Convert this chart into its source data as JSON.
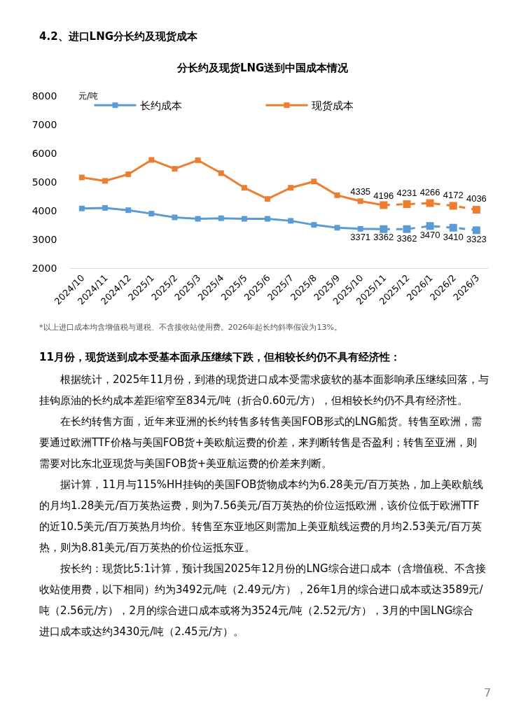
{
  "chart_data": {
    "type": "line",
    "title": "分长约及现货LNG送到中国成本情况",
    "ylabel": "元/吨",
    "categories": [
      "2024/10",
      "2024/11",
      "2024/12",
      "2025/1",
      "2025/2",
      "2025/3",
      "2025/4",
      "2025/5",
      "2025/6",
      "2025/7",
      "2025/8",
      "2025/9",
      "2025/10",
      "2025/11",
      "2025/12",
      "2026/1",
      "2026/2",
      "2026/3"
    ],
    "series": [
      {
        "name": "长约成本",
        "color": "#5b9bd5",
        "line_style": "solid",
        "marker": "square",
        "values": [
          4080,
          4100,
          4020,
          3900,
          3770,
          3720,
          3740,
          3720,
          3720,
          3650,
          3510,
          3410,
          3371,
          3362,
          null,
          null,
          null,
          null
        ],
        "value_labels": [
          null,
          null,
          null,
          null,
          null,
          null,
          null,
          null,
          null,
          null,
          null,
          null,
          "3371",
          "3362",
          null,
          null,
          null,
          null
        ]
      },
      {
        "name": "现货成本",
        "color": "#ed7d31",
        "line_style": "solid",
        "marker": "square",
        "values": [
          5160,
          5040,
          5270,
          5770,
          5460,
          5760,
          5310,
          4800,
          4410,
          4800,
          5020,
          4540,
          4335,
          4196,
          null,
          null,
          null,
          null
        ],
        "value_labels": [
          null,
          null,
          null,
          null,
          null,
          null,
          null,
          null,
          null,
          null,
          null,
          null,
          "4335",
          "4196",
          null,
          null,
          null,
          null
        ]
      },
      {
        "color": "#5b9bd5",
        "line_style": "dashed",
        "marker": "square",
        "values": [
          null,
          null,
          null,
          null,
          null,
          null,
          null,
          null,
          null,
          null,
          null,
          null,
          null,
          3362,
          3362,
          3470,
          3410,
          3323
        ],
        "value_labels": [
          null,
          null,
          null,
          null,
          null,
          null,
          null,
          null,
          null,
          null,
          null,
          null,
          null,
          null,
          "3362",
          "3470",
          "3410",
          "3323"
        ]
      },
      {
        "color": "#ed7d31",
        "line_style": "dashed",
        "marker": "square",
        "values": [
          null,
          null,
          null,
          null,
          null,
          null,
          null,
          null,
          null,
          null,
          null,
          null,
          null,
          4196,
          4231,
          4266,
          4172,
          4036
        ],
        "value_labels": [
          null,
          null,
          null,
          null,
          null,
          null,
          null,
          null,
          null,
          null,
          null,
          null,
          null,
          null,
          "4231",
          "4266",
          "4172",
          "4036"
        ]
      }
    ],
    "ylim": [
      2000,
      8000
    ],
    "yticks": [
      2000,
      3000,
      4000,
      5000,
      6000,
      7000,
      8000
    ],
    "grid": false,
    "legend": "top",
    "annotations": [
      "4.2、进口LNG分长约及现货成本",
      "*以上进口成本均含增值税与退税、不含接收站使用费。2026年起长约斜率假设为13%。",
      "11月份，现货送到成本受基本面承压继续下跌，但相较长约仍不具有经济性：",
      "根据统计，2025年11月份，到港的现货进口成本受需求疲软的基本面影响承压继续回落，与挂钩原油的长约成本差距缩窄至834元/吨（折合0.60元/方），但相较长约仍不具有经济性。",
      "在长约转售方面，近年来亚洲的长约转售多转售美国FOB形式的LNG船货。转售至欧洲，需要通过欧洲TTF价格与美国FOB货+美欧航运费的价差，来判断转售是否盈利；转售至亚洲，则需要对比东北亚现货与美国FOB货+美亚航运费的价差来判断。",
      "据计算，11月与115%HH挂钩的美国FOB货物成本约为6.28美元/百万英热，加上美欧航线的月均1.28美元/百万英热运费，则为7.56美元/百万英热的价位运抵欧洲，该价位低于欧洲TTF的近10.5美元/百万英热月均价。转售至东亚地区则需加上美亚航线运费的月均2.53美元/百万英热，则为8.81美元/百万英热的价位运抵东亚。",
      "按长约：现货比5:1计算，预计我国2025年12月份的LNG综合进口成本（含增值税、不含接收站使用费，以下相同）约为3492元/吨（2.49元/方），26年1月的综合进口成本或达3589元/吨（2.56元/方），2月的综合进口成本或将为3524元/吨（2.52元/方），3月的中国LNG综合进口成本或达约3430元/吨（2.45元/方）。",
      "7"
    ]
  }
}
